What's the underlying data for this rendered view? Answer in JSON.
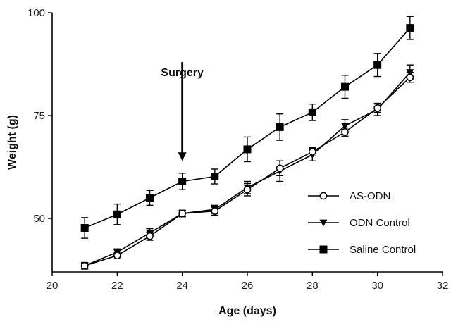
{
  "chart_data": {
    "type": "line",
    "title": "",
    "xlabel": "Age (days)",
    "ylabel": "Weight (g)",
    "xlim": [
      20,
      32
    ],
    "ylim": [
      37,
      100
    ],
    "xticks": [
      20,
      22,
      24,
      26,
      28,
      30,
      32
    ],
    "yticks": [
      50,
      75,
      100
    ],
    "grid": false,
    "legend_position": "bottom-right",
    "x": [
      21,
      22,
      23,
      24,
      25,
      26,
      27,
      28,
      29,
      30,
      31
    ],
    "series": [
      {
        "name": "AS-ODN",
        "marker": "open-circle",
        "color": "#000000",
        "values": [
          38.5,
          41,
          45.7,
          51.2,
          51.8,
          57,
          62.2,
          66.2,
          71,
          76.8,
          84.3
        ],
        "errors": [
          0.8,
          0.8,
          1.0,
          0.8,
          1.0,
          1.5,
          1.8,
          1.0,
          1.0,
          1.0,
          1.2
        ]
      },
      {
        "name": "ODN Control",
        "marker": "filled-triangle-down",
        "color": "#000000",
        "values": [
          38.5,
          41.8,
          46.5,
          51.2,
          52.2,
          57.5,
          61.5,
          65.5,
          72.5,
          76.5,
          85.5
        ],
        "errors": [
          0.8,
          0.8,
          1.0,
          0.8,
          1.0,
          1.5,
          2.5,
          1.5,
          1.5,
          1.5,
          1.8
        ]
      },
      {
        "name": "Saline Control",
        "marker": "filled-square",
        "color": "#000000",
        "values": [
          47.7,
          51,
          55,
          59,
          60.2,
          66.8,
          72.2,
          75.8,
          82,
          87.3,
          96.3
        ],
        "errors": [
          2.5,
          2.5,
          1.8,
          2.0,
          1.8,
          3.0,
          3.2,
          2.0,
          2.8,
          2.8,
          2.8
        ]
      }
    ],
    "annotations": [
      {
        "text": "Surgery",
        "x": 24,
        "arrow_from_y": 88,
        "arrow_to_y": 64
      }
    ]
  }
}
